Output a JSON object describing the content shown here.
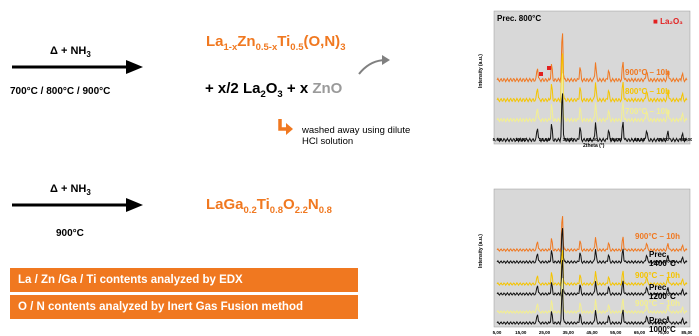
{
  "reaction1": {
    "reagent": "Δ + NH",
    "reagent_sub": "3",
    "temps": "700°C / 800°C / 900°C",
    "product": {
      "a": "La",
      "b": "1-x",
      "c": "Zn",
      "d": "0.5-x",
      "e": "Ti",
      "f": "0.5",
      "g": "(O,N)",
      "h": "3"
    },
    "byproduct": {
      "a": "+ x/2 La",
      "b": "2",
      "c": "O",
      "d": "3",
      "e": " + x ",
      "f": "ZnO"
    },
    "note": "washed away using dilute HCl solution"
  },
  "reaction2": {
    "reagent": "Δ + NH",
    "reagent_sub": "3",
    "temp": "900°C",
    "product": {
      "a": "LaGa",
      "b": "0.2",
      "c": "Ti",
      "d": "0.8",
      "e": "O",
      "f": "2.2",
      "g": "N",
      "h": "0.8"
    }
  },
  "info_bars": [
    "La / Zn /Ga / Ti contents analyzed by EDX",
    "O / N contents analyzed by Inert Gas Fusion method"
  ],
  "plot_top": {
    "title": "Prec. 800°C",
    "legend": "La₂O₃",
    "ylabel": "Intensity (a.u.)",
    "xlabel": "2theta (°)",
    "xticks": [
      "5,00",
      "15,00",
      "25,00",
      "35,00",
      "45,00",
      "55,00",
      "65,00",
      "75,00",
      "85,00"
    ],
    "series": [
      {
        "label": "900°C – 10h",
        "color": "#f07820"
      },
      {
        "label": "800°C – 10h",
        "color": "#f5c400"
      },
      {
        "label": "700°C – 10h",
        "color": "#f4ef90"
      },
      {
        "label": "",
        "color": "#111111"
      }
    ]
  },
  "plot_bottom": {
    "ylabel": "Intensity (a.u.)",
    "xticks": [
      "5,00",
      "15,00",
      "25,00",
      "35,00",
      "45,00",
      "55,00",
      "65,00",
      "75,00",
      "85,00"
    ],
    "series": [
      {
        "label": "900°C – 10h",
        "color": "#f07820"
      },
      {
        "label": "Prec. 1400°C",
        "color": "#111111"
      },
      {
        "label": "900°C – 10h",
        "color": "#f5c400"
      },
      {
        "label": "Prec. 1200°C",
        "color": "#111111"
      },
      {
        "label": "900°C – 10h",
        "color": "#f4ef90"
      },
      {
        "label": "Prec. 1000°C",
        "color": "#111111"
      }
    ]
  }
}
